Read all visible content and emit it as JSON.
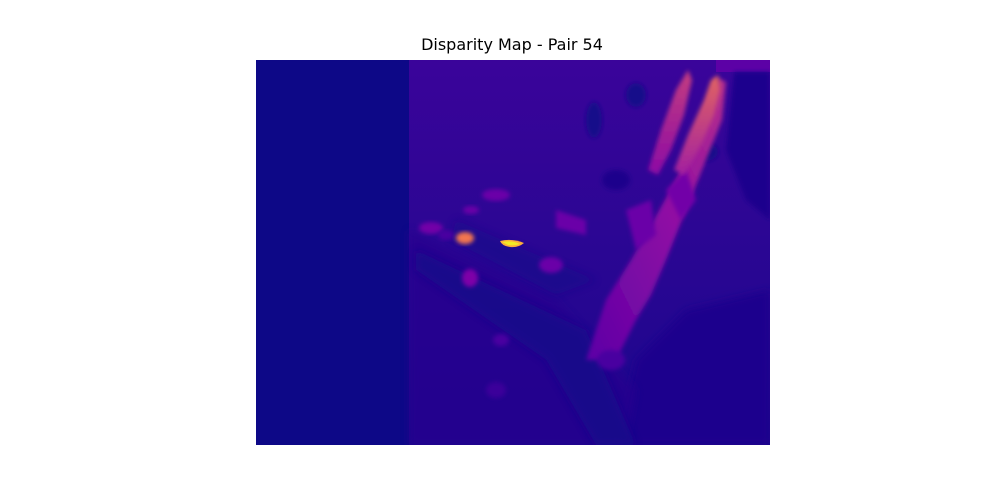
{
  "title": "Disparity Map - Pair 54",
  "colors": {
    "background": "#ffffff",
    "colormap": "plasma",
    "low": "#0d0887",
    "mid_low": "#3a049a",
    "mid": "#7e03a8",
    "mid_high": "#cc4778",
    "high": "#f89540",
    "peak": "#f0f921"
  }
}
